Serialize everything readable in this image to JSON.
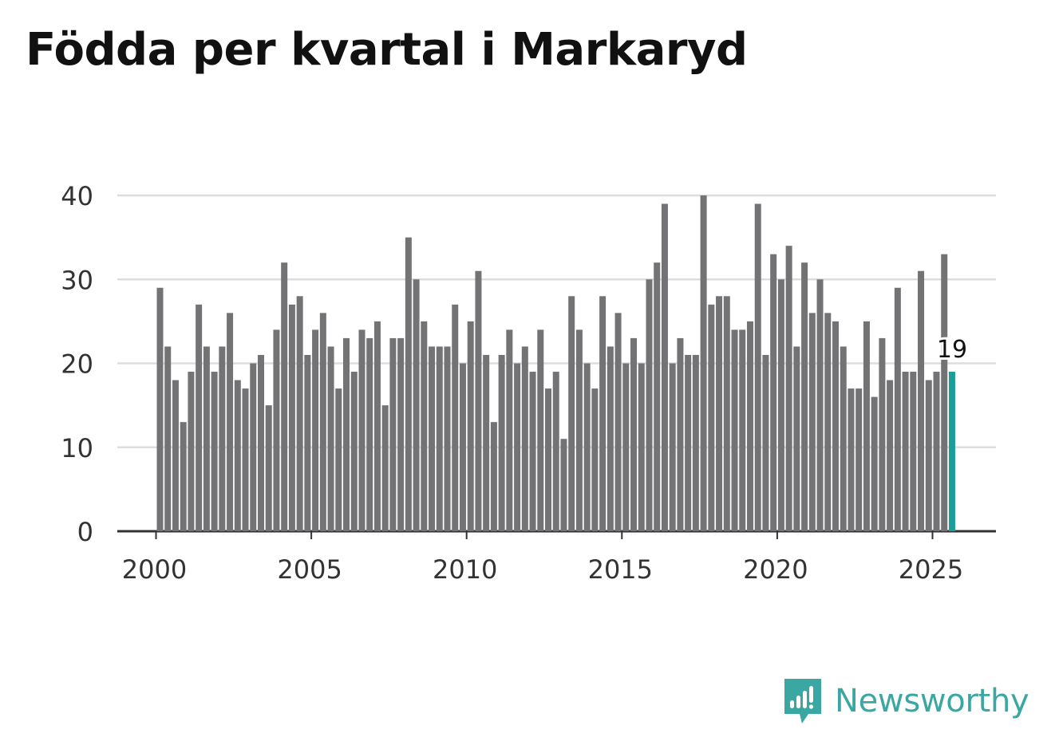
{
  "title": "Födda per kvartal i Markaryd",
  "brand": {
    "name": "Newsworthy",
    "color": "#3aa7a3"
  },
  "colors": {
    "bar": "#737275",
    "highlight": "#1a9e97",
    "grid": "#dddddd",
    "axis": "#333333"
  },
  "chart_data": {
    "type": "bar",
    "title": "Födda per kvartal i Markaryd",
    "xlabel": "",
    "ylabel": "",
    "ylim": [
      0,
      40
    ],
    "yticks": [
      0,
      10,
      20,
      30,
      40
    ],
    "xticks": [
      "2000",
      "2005",
      "2010",
      "2015",
      "2020",
      "2025"
    ],
    "grid": true,
    "start_year": 2000,
    "highlight_label": "19",
    "values": [
      29,
      22,
      18,
      13,
      19,
      27,
      22,
      19,
      22,
      26,
      18,
      17,
      20,
      21,
      15,
      24,
      32,
      27,
      28,
      21,
      24,
      26,
      22,
      17,
      23,
      19,
      24,
      23,
      25,
      15,
      23,
      23,
      35,
      30,
      25,
      22,
      22,
      22,
      27,
      20,
      25,
      31,
      21,
      13,
      21,
      24,
      20,
      22,
      19,
      24,
      17,
      19,
      11,
      28,
      24,
      20,
      17,
      28,
      22,
      26,
      20,
      23,
      20,
      30,
      32,
      39,
      20,
      23,
      21,
      21,
      40,
      27,
      28,
      28,
      24,
      24,
      25,
      39,
      21,
      33,
      30,
      34,
      22,
      32,
      26,
      30,
      26,
      25,
      22,
      17,
      17,
      25,
      16,
      23,
      18,
      29,
      19,
      19,
      31,
      18,
      19,
      33,
      19
    ]
  }
}
